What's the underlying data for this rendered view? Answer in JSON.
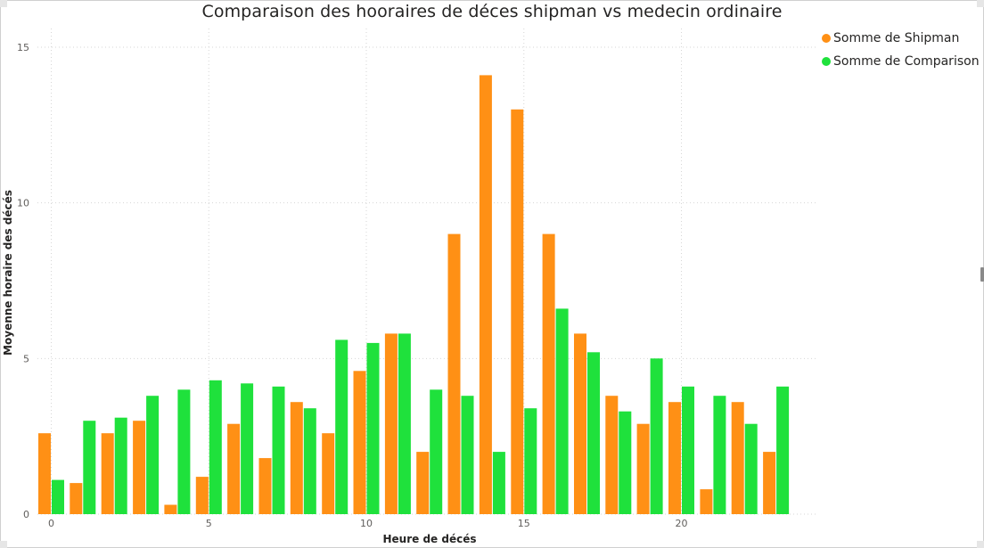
{
  "chart_data": {
    "type": "bar",
    "title": "Comparaison des hooraires de déces shipman vs medecin ordinaire",
    "xlabel": "Heure de décés",
    "ylabel": "Moyenne horaire des décés",
    "x": [
      0,
      1,
      2,
      3,
      4,
      5,
      6,
      7,
      8,
      9,
      10,
      11,
      12,
      13,
      14,
      15,
      16,
      17,
      18,
      19,
      20,
      21,
      22,
      23
    ],
    "x_ticks": [
      "0",
      "5",
      "10",
      "15",
      "20"
    ],
    "y_ticks": [
      "0",
      "5",
      "10",
      "15"
    ],
    "ylim": [
      0,
      15.6
    ],
    "grid": true,
    "legend_position": "top-right",
    "series": [
      {
        "name": "Somme de Shipman",
        "color": "#FF9015",
        "values": [
          2.6,
          1.0,
          2.6,
          3.0,
          0.3,
          1.2,
          2.9,
          1.8,
          3.6,
          2.6,
          4.6,
          5.8,
          2.0,
          9.0,
          14.1,
          13.0,
          9.0,
          5.8,
          3.8,
          2.9,
          3.6,
          0.8,
          3.6,
          2.0
        ]
      },
      {
        "name": "Somme de Comparison",
        "color": "#1FE13C",
        "values": [
          1.1,
          3.0,
          3.1,
          3.8,
          4.0,
          4.3,
          4.2,
          4.1,
          3.4,
          5.6,
          5.5,
          5.8,
          4.0,
          3.8,
          2.0,
          3.4,
          6.6,
          5.2,
          3.3,
          5.0,
          4.1,
          3.8,
          2.9,
          4.1
        ]
      }
    ]
  }
}
